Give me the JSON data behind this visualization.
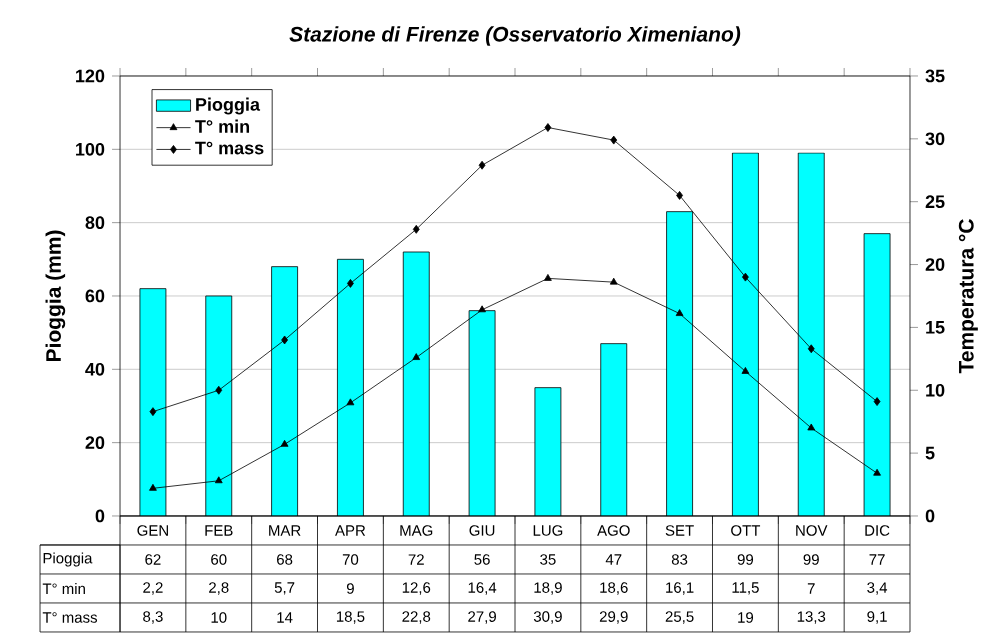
{
  "chart_data": {
    "type": "bar",
    "title": "Stazione di Firenze (Osservatorio Ximeniano)",
    "ylabel": "Pioggia (mm)",
    "y2label": "Temperatura °C",
    "categories": [
      "GEN",
      "FEB",
      "MAR",
      "APR",
      "MAG",
      "GIU",
      "LUG",
      "AGO",
      "SET",
      "OTT",
      "NOV",
      "DIC"
    ],
    "series": [
      {
        "name": "Pioggia",
        "color": "#00ffff",
        "values": [
          62,
          60,
          68,
          70,
          72,
          56,
          35,
          47,
          83,
          99,
          99,
          77
        ],
        "value_labels": [
          "62",
          "60",
          "68",
          "70",
          "72",
          "56",
          "35",
          "47",
          "83",
          "99",
          "99",
          "77"
        ]
      },
      {
        "name": "T° min",
        "type": "line",
        "axis": "y2",
        "color": "#000000",
        "marker": "triangle",
        "values": [
          2.2,
          2.8,
          5.7,
          9,
          12.6,
          16.4,
          18.9,
          18.6,
          16.1,
          11.5,
          7,
          3.4
        ],
        "value_labels": [
          "2,2",
          "2,8",
          "5,7",
          "9",
          "12,6",
          "16,4",
          "18,9",
          "18,6",
          "16,1",
          "11,5",
          "7",
          "3,4"
        ]
      },
      {
        "name": "T° mass",
        "type": "line",
        "axis": "y2",
        "color": "#000000",
        "marker": "diamond",
        "values": [
          8.3,
          10,
          14,
          18.5,
          22.8,
          27.9,
          30.9,
          29.9,
          25.5,
          19,
          13.3,
          9.1
        ],
        "value_labels": [
          "8,3",
          "10",
          "14",
          "18,5",
          "22,8",
          "27,9",
          "30,9",
          "29,9",
          "25,5",
          "19",
          "13,3",
          "9,1"
        ]
      }
    ],
    "ylim": [
      0,
      120
    ],
    "yticks": [
      0,
      20,
      40,
      60,
      80,
      100,
      120
    ],
    "y2lim": [
      0,
      35
    ],
    "y2ticks": [
      0,
      5,
      10,
      15,
      20,
      25,
      30,
      35
    ],
    "grid": "y",
    "legend": "top left",
    "line_style": "solid"
  }
}
